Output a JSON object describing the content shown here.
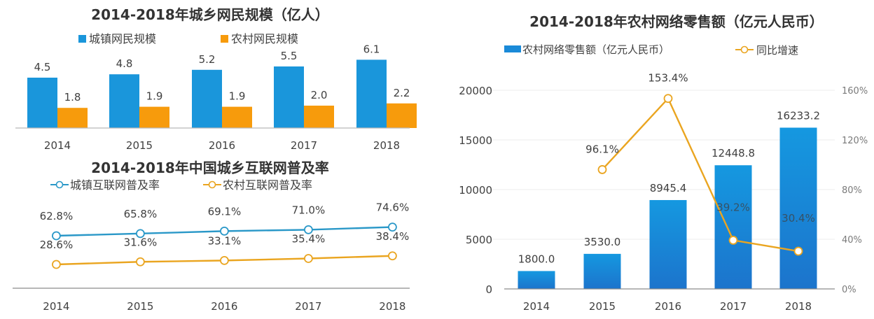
{
  "chart_data": [
    {
      "type": "bar",
      "title": "2014-2018年城乡网民规模（亿人）",
      "categories": [
        "2014",
        "2015",
        "2016",
        "2017",
        "2018"
      ],
      "series": [
        {
          "name": "城镇网民规模",
          "values": [
            4.5,
            4.8,
            5.2,
            5.5,
            6.1
          ],
          "labels": [
            "4.5",
            "4.8",
            "5.2",
            "5.5",
            "6.1"
          ],
          "color": "#1a96db"
        },
        {
          "name": "农村网民规模",
          "values": [
            1.8,
            1.9,
            1.9,
            2.0,
            2.2
          ],
          "labels": [
            "1.8",
            "1.9",
            "1.9",
            "2.0",
            "2.2"
          ],
          "color": "#f79b0c"
        }
      ],
      "xlabel": "",
      "ylabel": "",
      "ylim": [
        0,
        7
      ],
      "legend": "top"
    },
    {
      "type": "line",
      "title": "2014-2018年中国城乡互联网普及率",
      "categories": [
        "2014",
        "2015",
        "2016",
        "2017",
        "2018"
      ],
      "series": [
        {
          "name": "城镇互联网普及率",
          "values": [
            62.8,
            65.8,
            69.1,
            71.0,
            74.6
          ],
          "labels": [
            "62.8%",
            "65.8%",
            "69.1%",
            "71.0%",
            "74.6%"
          ],
          "color": "#2a98c8"
        },
        {
          "name": "农村互联网普及率",
          "values": [
            28.6,
            31.6,
            33.1,
            35.4,
            38.4
          ],
          "labels": [
            "28.6%",
            "31.6%",
            "33.1%",
            "35.4%",
            "38.4%"
          ],
          "color": "#eaa520"
        }
      ],
      "xlabel": "",
      "ylabel": "",
      "ylim": [
        0,
        100
      ],
      "legend": "top"
    },
    {
      "type": "bar",
      "title": "2014-2018年农村网络零售额（亿元人民币）",
      "categories": [
        "2014",
        "2015",
        "2016",
        "2017",
        "2018"
      ],
      "series": [
        {
          "name": "农村网络零售额（亿元人民币）",
          "axis": "left",
          "values": [
            1800.0,
            3530.0,
            8945.4,
            12448.8,
            16233.2
          ],
          "labels": [
            "1800.0",
            "3530.0",
            "8945.4",
            "12448.8",
            "16233.2"
          ],
          "color": "#1a8ad8"
        },
        {
          "name": "同比增速",
          "type": "line",
          "axis": "right",
          "values": [
            null,
            96.1,
            153.4,
            39.2,
            30.4
          ],
          "labels": [
            "",
            "96.1%",
            "153.4%",
            "39.2%",
            "30.4%"
          ],
          "color": "#eaa520"
        }
      ],
      "xlabel": "",
      "ylabel": "",
      "ylim": [
        0,
        20000
      ],
      "yticks": [
        "0",
        "5000",
        "10000",
        "15000",
        "20000"
      ],
      "y2lim": [
        0,
        160
      ],
      "y2ticks": [
        "0%",
        "40%",
        "80%",
        "120%",
        "160%"
      ],
      "grid": true,
      "legend": "top"
    }
  ]
}
